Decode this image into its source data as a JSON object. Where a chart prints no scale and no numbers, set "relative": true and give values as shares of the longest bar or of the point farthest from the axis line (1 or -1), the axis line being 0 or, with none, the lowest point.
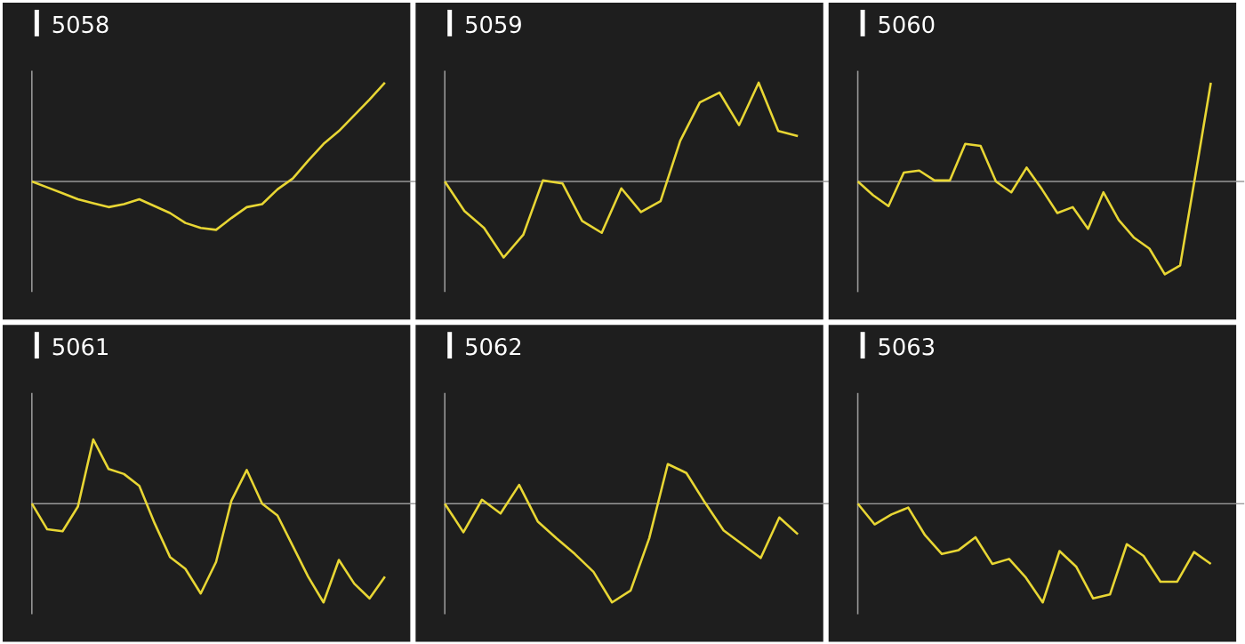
{
  "chart_data": [
    {
      "type": "line",
      "title": "5058",
      "relative": true,
      "color": "#e8d634",
      "categories": [
        null,
        null,
        null,
        null,
        null,
        null,
        null,
        null,
        null,
        null,
        null,
        null,
        null,
        null,
        null,
        null,
        null,
        null,
        null,
        null,
        null,
        null,
        null,
        null
      ],
      "values": [
        0,
        -0.06,
        -0.12,
        -0.18,
        -0.22,
        -0.26,
        -0.23,
        -0.18,
        -0.25,
        -0.32,
        -0.42,
        -0.47,
        -0.49,
        -0.37,
        -0.26,
        -0.23,
        -0.08,
        0.03,
        0.21,
        0.38,
        0.51,
        0.67,
        0.83,
        1
      ]
    },
    {
      "type": "line",
      "title": "5059",
      "relative": true,
      "color": "#e8d634",
      "categories": [
        null,
        null,
        null,
        null,
        null,
        null,
        null,
        null,
        null,
        null,
        null,
        null,
        null,
        null,
        null,
        null,
        null,
        null,
        null
      ],
      "values": [
        0,
        -0.3,
        -0.47,
        -0.77,
        -0.54,
        0.01,
        -0.02,
        -0.4,
        -0.52,
        -0.07,
        -0.31,
        -0.2,
        0.41,
        0.8,
        0.9,
        0.57,
        1,
        0.51,
        0.46
      ]
    },
    {
      "type": "line",
      "title": "5060",
      "relative": true,
      "color": "#e8d634",
      "categories": [
        null,
        null,
        null,
        null,
        null,
        null,
        null,
        null,
        null,
        null,
        null,
        null,
        null,
        null,
        null,
        null,
        null,
        null,
        null,
        null,
        null,
        null,
        null,
        null
      ],
      "values": [
        0,
        -0.14,
        -0.25,
        0.09,
        0.11,
        0.01,
        0.01,
        0.38,
        0.36,
        0,
        -0.11,
        0.14,
        -0.08,
        -0.32,
        -0.26,
        -0.48,
        -0.11,
        -0.39,
        -0.57,
        -0.68,
        -0.94,
        -0.85,
        0.07,
        1
      ]
    },
    {
      "type": "line",
      "title": "5061",
      "relative": true,
      "color": "#e8d634",
      "categories": [
        null,
        null,
        null,
        null,
        null,
        null,
        null,
        null,
        null,
        null,
        null,
        null,
        null,
        null,
        null,
        null,
        null,
        null,
        null,
        null,
        null,
        null,
        null,
        null
      ],
      "values": [
        0,
        -0.26,
        -0.28,
        -0.03,
        0.65,
        0.35,
        0.3,
        0.18,
        -0.2,
        -0.54,
        -0.66,
        -0.91,
        -0.59,
        0.03,
        0.34,
        0,
        -0.12,
        -0.43,
        -0.74,
        -1,
        -0.57,
        -0.81,
        -0.96,
        -0.74
      ]
    },
    {
      "type": "line",
      "title": "5062",
      "relative": true,
      "color": "#e8d634",
      "categories": [
        null,
        null,
        null,
        null,
        null,
        null,
        null,
        null,
        null,
        null,
        null,
        null,
        null,
        null,
        null,
        null,
        null,
        null,
        null,
        null
      ],
      "values": [
        0,
        -0.29,
        0.04,
        -0.1,
        0.19,
        -0.18,
        -0.35,
        -0.51,
        -0.69,
        -1,
        -0.88,
        -0.35,
        0.4,
        0.31,
        0.01,
        -0.27,
        -0.41,
        -0.55,
        -0.14,
        -0.31
      ]
    },
    {
      "type": "line",
      "title": "5063",
      "relative": true,
      "color": "#e8d634",
      "categories": [
        null,
        null,
        null,
        null,
        null,
        null,
        null,
        null,
        null,
        null,
        null,
        null,
        null,
        null,
        null,
        null,
        null,
        null,
        null,
        null,
        null,
        null
      ],
      "values": [
        0,
        -0.21,
        -0.11,
        -0.04,
        -0.32,
        -0.51,
        -0.47,
        -0.34,
        -0.61,
        -0.56,
        -0.75,
        -1,
        -0.48,
        -0.64,
        -0.96,
        -0.92,
        -0.41,
        -0.53,
        -0.79,
        -0.79,
        -0.49,
        -0.61
      ]
    }
  ]
}
